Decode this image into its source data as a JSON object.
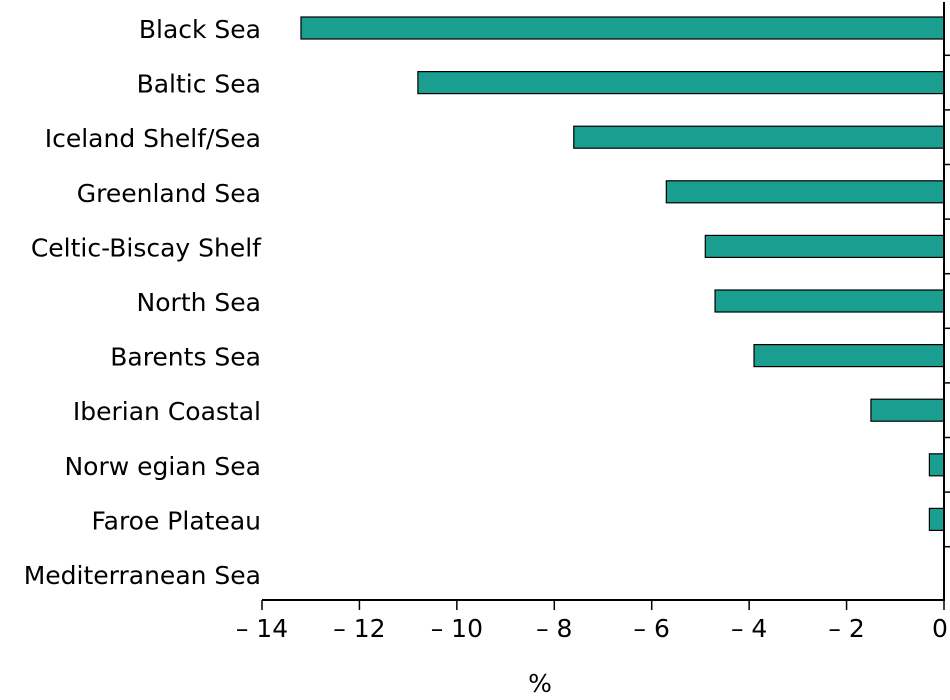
{
  "colors": {
    "bar_fill": "#1a9e8f",
    "bar_stroke": "#000000",
    "axis": "#000000"
  },
  "chart_data": {
    "type": "bar",
    "orientation": "horizontal",
    "categories": [
      "Black Sea",
      "Baltic Sea",
      "Iceland Shelf/Sea",
      "Greenland Sea",
      "Celtic-Biscay Shelf",
      "North Sea",
      "Barents Sea",
      "Iberian Coastal",
      "Norw egian Sea",
      "Faroe Plateau",
      "Mediterranean Sea"
    ],
    "values": [
      -13.2,
      -10.8,
      -7.6,
      -5.7,
      -4.9,
      -4.7,
      -3.9,
      -1.5,
      -0.3,
      -0.3,
      0
    ],
    "xlabel": "%",
    "ylabel": "",
    "title": "",
    "xlim": [
      -14,
      0
    ],
    "xticks": [
      -14,
      -12,
      -10,
      -8,
      -6,
      -4,
      -2,
      0
    ],
    "xtick_labels": [
      "– 14",
      "– 12",
      "– 10",
      "– 8",
      "– 6",
      "– 4",
      "– 2",
      "0"
    ],
    "grid": false,
    "legend": "none"
  }
}
